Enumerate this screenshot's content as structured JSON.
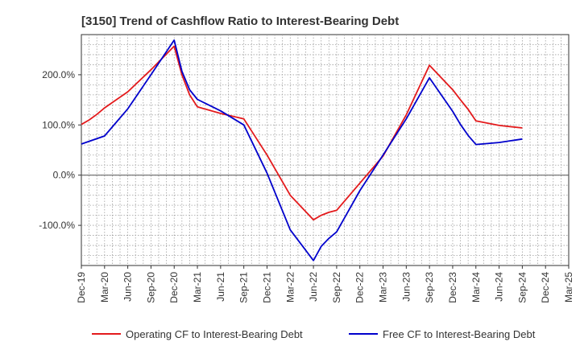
{
  "chart_data": {
    "type": "line",
    "title": "[3150]  Trend of Cashflow Ratio to Interest-Bearing Debt",
    "xlabel": "",
    "ylabel": "",
    "x_ticks": [
      "Dec-19",
      "Mar-20",
      "Jun-20",
      "Sep-20",
      "Dec-20",
      "Mar-21",
      "Jun-21",
      "Sep-21",
      "Dec-21",
      "Mar-22",
      "Jun-22",
      "Sep-22",
      "Dec-22",
      "Mar-23",
      "Jun-23",
      "Sep-23",
      "Dec-23",
      "Mar-24",
      "Jun-24",
      "Sep-24",
      "Dec-24",
      "Mar-25"
    ],
    "y_ticks": [
      {
        "value": 200,
        "label": "200.0%"
      },
      {
        "value": 100,
        "label": "100.0%"
      },
      {
        "value": 0,
        "label": "0.0%"
      },
      {
        "value": -100,
        "label": "-100.0%"
      }
    ],
    "ylim": [
      -180,
      280
    ],
    "grid": true,
    "legend_position": "bottom",
    "series": [
      {
        "name": "Operating CF to Interest-Bearing Debt",
        "color": "#e31a1c",
        "points": [
          {
            "x": "Dec-19",
            "y": 101
          },
          {
            "x": "Jan-20",
            "y": 110
          },
          {
            "x": "Feb-20",
            "y": 121
          },
          {
            "x": "Mar-20",
            "y": 134
          },
          {
            "x": "Jun-20",
            "y": 166
          },
          {
            "x": "Sep-20",
            "y": 210
          },
          {
            "x": "Dec-20",
            "y": 257
          },
          {
            "x": "Jan-21",
            "y": 200
          },
          {
            "x": "Feb-21",
            "y": 160
          },
          {
            "x": "Mar-21",
            "y": 136
          },
          {
            "x": "Jun-21",
            "y": 123
          },
          {
            "x": "Sep-21",
            "y": 112
          },
          {
            "x": "Dec-21",
            "y": 40
          },
          {
            "x": "Mar-22",
            "y": -40
          },
          {
            "x": "Jun-22",
            "y": -89
          },
          {
            "x": "Jul-22",
            "y": -80
          },
          {
            "x": "Aug-22",
            "y": -74
          },
          {
            "x": "Sep-22",
            "y": -70
          },
          {
            "x": "Dec-22",
            "y": -16
          },
          {
            "x": "Mar-23",
            "y": 38
          },
          {
            "x": "Jun-23",
            "y": 120
          },
          {
            "x": "Sep-23",
            "y": 219
          },
          {
            "x": "Dec-23",
            "y": 170
          },
          {
            "x": "Jan-24",
            "y": 150
          },
          {
            "x": "Feb-24",
            "y": 131
          },
          {
            "x": "Mar-24",
            "y": 108
          },
          {
            "x": "Jun-24",
            "y": 99
          },
          {
            "x": "Sep-24",
            "y": 94
          }
        ]
      },
      {
        "name": "Free CF to Interest-Bearing Debt",
        "color": "#0000cc",
        "points": [
          {
            "x": "Dec-19",
            "y": 62
          },
          {
            "x": "Mar-20",
            "y": 78
          },
          {
            "x": "Jun-20",
            "y": 132
          },
          {
            "x": "Sep-20",
            "y": 200
          },
          {
            "x": "Dec-20",
            "y": 269
          },
          {
            "x": "Jan-21",
            "y": 207
          },
          {
            "x": "Feb-21",
            "y": 170
          },
          {
            "x": "Mar-21",
            "y": 151
          },
          {
            "x": "Jun-21",
            "y": 128
          },
          {
            "x": "Sep-21",
            "y": 100
          },
          {
            "x": "Dec-21",
            "y": 4
          },
          {
            "x": "Mar-22",
            "y": -109
          },
          {
            "x": "Jun-22",
            "y": -170
          },
          {
            "x": "Jul-22",
            "y": -142
          },
          {
            "x": "Aug-22",
            "y": -126
          },
          {
            "x": "Sep-22",
            "y": -113
          },
          {
            "x": "Dec-22",
            "y": -31
          },
          {
            "x": "Mar-23",
            "y": 40
          },
          {
            "x": "Jun-23",
            "y": 112
          },
          {
            "x": "Sep-23",
            "y": 194
          },
          {
            "x": "Dec-23",
            "y": 127
          },
          {
            "x": "Jan-24",
            "y": 101
          },
          {
            "x": "Feb-24",
            "y": 79
          },
          {
            "x": "Mar-24",
            "y": 61
          },
          {
            "x": "Jun-24",
            "y": 65
          },
          {
            "x": "Sep-24",
            "y": 72
          }
        ]
      }
    ]
  }
}
